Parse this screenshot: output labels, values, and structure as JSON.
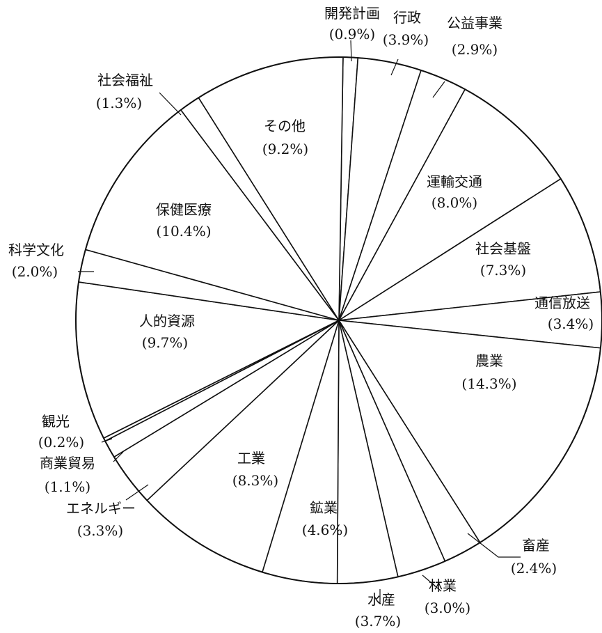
{
  "chart_data": {
    "type": "pie",
    "title": "",
    "slices": [
      {
        "label": "開発計画",
        "value": 0.9,
        "value_text": "(0.9%)"
      },
      {
        "label": "行政",
        "value": 3.9,
        "value_text": "(3.9%)"
      },
      {
        "label": "公益事業",
        "value": 2.9,
        "value_text": "(2.9%)"
      },
      {
        "label": "運輸交通",
        "value": 8.0,
        "value_text": "(8.0%)"
      },
      {
        "label": "社会基盤",
        "value": 7.3,
        "value_text": "(7.3%)"
      },
      {
        "label": "通信放送",
        "value": 3.4,
        "value_text": "(3.4%)"
      },
      {
        "label": "農業",
        "value": 14.3,
        "value_text": "(14.3%)"
      },
      {
        "label": "畜産",
        "value": 2.4,
        "value_text": "(2.4%)"
      },
      {
        "label": "林業",
        "value": 3.0,
        "value_text": "(3.0%)"
      },
      {
        "label": "水産",
        "value": 3.7,
        "value_text": "(3.7%)"
      },
      {
        "label": "鉱業",
        "value": 4.6,
        "value_text": "(4.6%)"
      },
      {
        "label": "工業",
        "value": 8.3,
        "value_text": "(8.3%)"
      },
      {
        "label": "エネルギー",
        "value": 3.3,
        "value_text": "(3.3%)"
      },
      {
        "label": "商業貿易",
        "value": 1.1,
        "value_text": "(1.1%)"
      },
      {
        "label": "観光",
        "value": 0.2,
        "value_text": "(0.2%)"
      },
      {
        "label": "人的資源",
        "value": 9.7,
        "value_text": "(9.7%)"
      },
      {
        "label": "科学文化",
        "value": 2.0,
        "value_text": "(2.0%)"
      },
      {
        "label": "保健医療",
        "value": 10.4,
        "value_text": "(10.4%)"
      },
      {
        "label": "社会福祉",
        "value": 1.3,
        "value_text": "(1.3%)"
      },
      {
        "label": "その他",
        "value": 9.2,
        "value_text": "(9.2%)"
      }
    ],
    "unit": "%",
    "legend": "none",
    "colors": {
      "stroke": "#111111",
      "fill": "#ffffff"
    }
  }
}
